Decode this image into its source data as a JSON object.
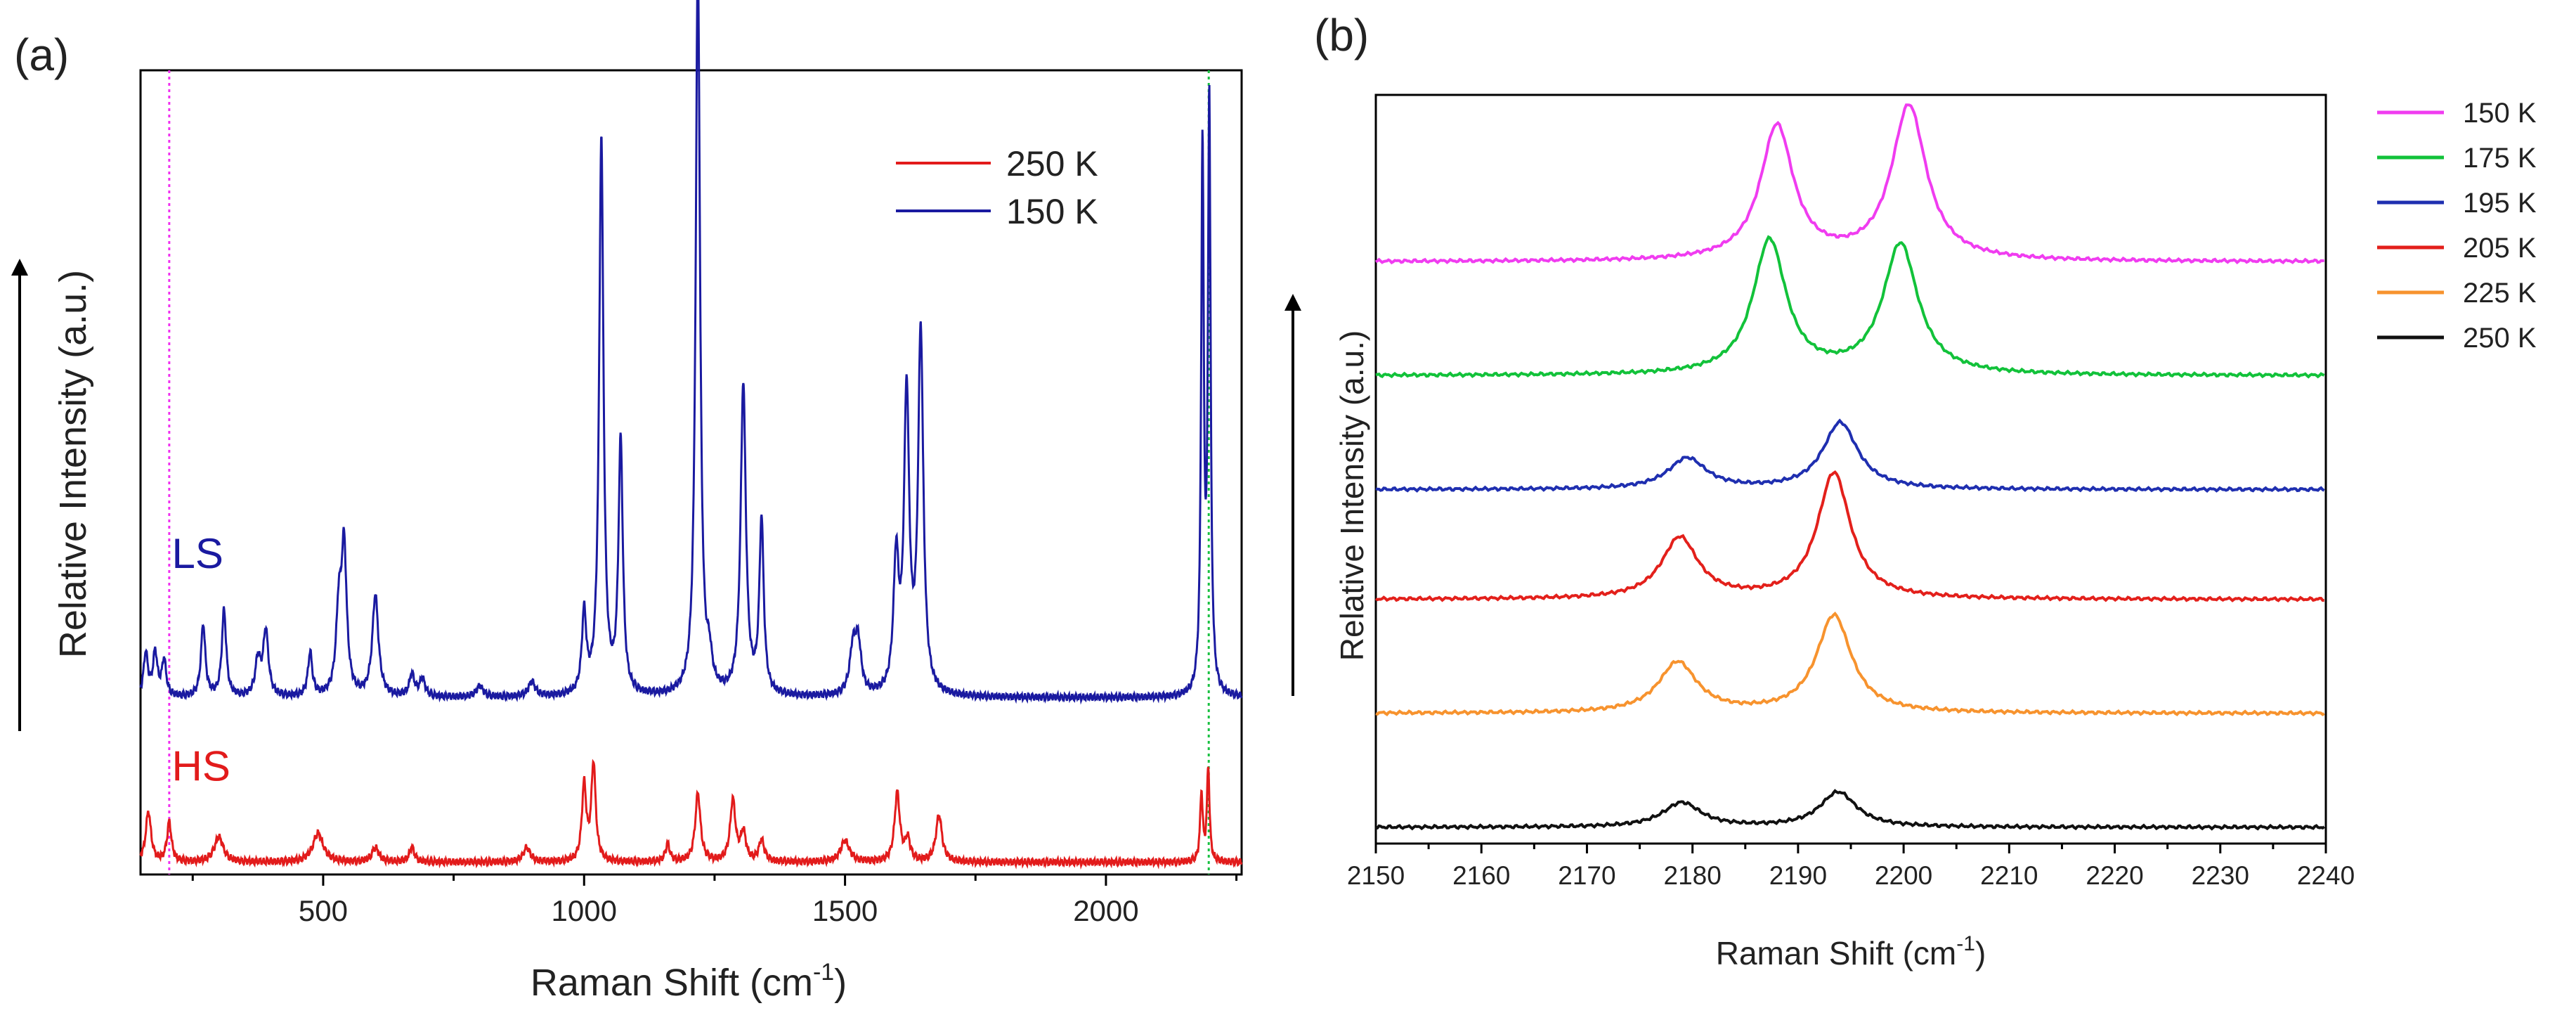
{
  "panels": {
    "a": "(a)",
    "b": "(b)"
  },
  "colors": {
    "blue": "#1a1aa0",
    "red": "#e21b1b",
    "magenta": "#f03cf0",
    "green": "#12c23a",
    "blue_b": "#1f2fb0",
    "red_b": "#e3201b",
    "orange": "#f7932e",
    "black": "#111111",
    "guide_magenta": "#f030f0",
    "guide_green": "#18c040"
  },
  "chart_data": [
    {
      "id": "a",
      "type": "line",
      "xlabel": "Raman Shift (cm",
      "xlabel_sup": "-1",
      "xlabel_end": ")",
      "ylabel": "Relative Intensity (a.u.)",
      "xlim": [
        150,
        2260
      ],
      "ylim": [
        -0.15,
        11.0
      ],
      "xticks": [
        500,
        1000,
        1500,
        2000
      ],
      "guides": [
        {
          "x": 205,
          "color": "guide_magenta"
        },
        {
          "x": 2197,
          "color": "guide_green"
        }
      ],
      "annotations": [
        {
          "text": "LS",
          "color": "blue",
          "x": 210,
          "y": 4.1
        },
        {
          "text": "HS",
          "color": "red",
          "x": 210,
          "y": 1.15
        }
      ],
      "legend": {
        "position": "top-right",
        "entries": [
          {
            "label": "250 K",
            "color": "red"
          },
          {
            "label": "150 K",
            "color": "blue"
          }
        ]
      },
      "series": [
        {
          "name": "150 K",
          "color": "blue",
          "baseline": 2.3,
          "peaks": [
            [
              160,
              0.6,
              5
            ],
            [
              178,
              0.6,
              5
            ],
            [
              195,
              0.5,
              5
            ],
            [
              270,
              1.0,
              5
            ],
            [
              310,
              1.2,
              5
            ],
            [
              375,
              0.5,
              6
            ],
            [
              390,
              0.9,
              6
            ],
            [
              475,
              0.6,
              5
            ],
            [
              530,
              1.1,
              6
            ],
            [
              540,
              2.0,
              6
            ],
            [
              600,
              1.4,
              7
            ],
            [
              670,
              0.3,
              6
            ],
            [
              690,
              0.25,
              6
            ],
            [
              800,
              0.15,
              8
            ],
            [
              900,
              0.2,
              8
            ],
            [
              1000,
              1.1,
              5
            ],
            [
              1033,
              7.7,
              5
            ],
            [
              1070,
              3.5,
              5
            ],
            [
              1218,
              10.2,
              5
            ],
            [
              1240,
              0.4,
              6
            ],
            [
              1305,
              4.3,
              6
            ],
            [
              1340,
              2.4,
              5
            ],
            [
              1515,
              0.6,
              7
            ],
            [
              1525,
              0.7,
              7
            ],
            [
              1598,
              1.8,
              6
            ],
            [
              1618,
              4.1,
              6
            ],
            [
              1645,
              5.0,
              6
            ],
            [
              2185,
              7.5,
              3
            ],
            [
              2198,
              8.2,
              3
            ]
          ]
        },
        {
          "name": "250 K",
          "color": "red",
          "baseline": 0.02,
          "peaks": [
            [
              165,
              0.7,
              6
            ],
            [
              205,
              0.55,
              5
            ],
            [
              300,
              0.35,
              10
            ],
            [
              490,
              0.4,
              12
            ],
            [
              600,
              0.2,
              8
            ],
            [
              670,
              0.2,
              6
            ],
            [
              890,
              0.2,
              8
            ],
            [
              1000,
              1.05,
              5
            ],
            [
              1018,
              1.35,
              5
            ],
            [
              1160,
              0.25,
              5
            ],
            [
              1218,
              0.95,
              6
            ],
            [
              1285,
              0.85,
              6
            ],
            [
              1305,
              0.4,
              6
            ],
            [
              1340,
              0.3,
              6
            ],
            [
              1500,
              0.3,
              10
            ],
            [
              1600,
              0.95,
              6
            ],
            [
              1620,
              0.3,
              6
            ],
            [
              1680,
              0.65,
              7
            ],
            [
              2183,
              0.95,
              3
            ],
            [
              2196,
              1.3,
              3
            ]
          ]
        }
      ]
    },
    {
      "id": "b",
      "type": "line",
      "xlabel": "Raman Shift (cm",
      "xlabel_sup": "-1",
      "xlabel_end": ")",
      "ylabel": "Relative Intensity (a.u.)",
      "xlim": [
        2150,
        2240
      ],
      "ylim": [
        -0.05,
        9.15
      ],
      "xticks": [
        2150,
        2160,
        2170,
        2180,
        2190,
        2200,
        2210,
        2220,
        2230,
        2240
      ],
      "legend": {
        "position": "right",
        "entries": [
          {
            "label": "150 K",
            "color": "magenta"
          },
          {
            "label": "175 K",
            "color": "green"
          },
          {
            "label": "195 K",
            "color": "blue_b"
          },
          {
            "label": "205 K",
            "color": "red_b"
          },
          {
            "label": "225 K",
            "color": "orange"
          },
          {
            "label": "250 K",
            "color": "black"
          }
        ]
      },
      "series": [
        {
          "name": "150 K",
          "color": "magenta",
          "offset": 7.1,
          "peaks": [
            [
              2188,
              1.65,
              1.9
            ],
            [
              2200.5,
              1.9,
              2.0
            ]
          ]
        },
        {
          "name": "175 K",
          "color": "green",
          "offset": 5.7,
          "peaks": [
            [
              2187.3,
              1.65,
              1.9
            ],
            [
              2199.7,
              1.6,
              2.0
            ]
          ]
        },
        {
          "name": "195 K",
          "color": "blue_b",
          "offset": 4.3,
          "peaks": [
            [
              2179.5,
              0.38,
              2.2
            ],
            [
              2194,
              0.82,
              2.0
            ]
          ]
        },
        {
          "name": "205 K",
          "color": "red_b",
          "offset": 2.95,
          "peaks": [
            [
              2178.8,
              0.75,
              2.1
            ],
            [
              2193.4,
              1.55,
              1.9
            ]
          ]
        },
        {
          "name": "225 K",
          "color": "orange",
          "offset": 1.55,
          "peaks": [
            [
              2178.6,
              0.62,
              2.2
            ],
            [
              2193.4,
              1.2,
              2.0
            ]
          ]
        },
        {
          "name": "250 K",
          "color": "black",
          "offset": 0.15,
          "peaks": [
            [
              2179,
              0.3,
              2.2
            ],
            [
              2193.8,
              0.43,
              2.1
            ]
          ]
        }
      ]
    }
  ]
}
